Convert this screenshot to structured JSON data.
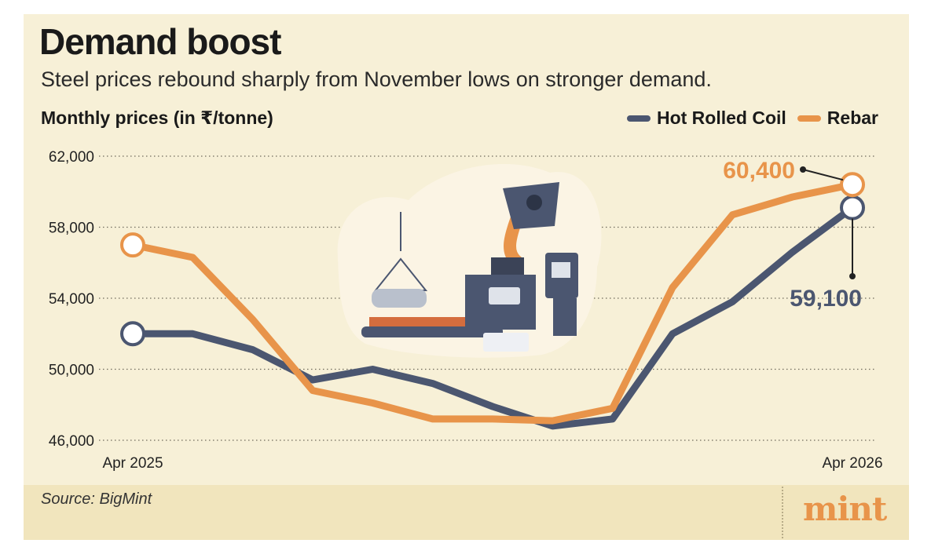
{
  "header": {
    "title": "Demand boost",
    "subtitle": "Steel prices rebound sharply from November lows on stronger demand.",
    "units": "Monthly prices (in ₹/tonne)"
  },
  "legend": [
    {
      "label": "Hot Rolled Coil",
      "color": "#4b5670"
    },
    {
      "label": "Rebar",
      "color": "#e8944a"
    }
  ],
  "chart_data": {
    "type": "line",
    "ylabel": "Monthly prices (in ₹/tonne)",
    "ylim": [
      46000,
      62000
    ],
    "yticks": [
      46000,
      50000,
      54000,
      58000,
      62000
    ],
    "ytick_labels": [
      "46,000",
      "50,000",
      "54,000",
      "58,000",
      "62,000"
    ],
    "x_labels": [
      {
        "index": 0,
        "label": "Apr 2025"
      },
      {
        "index": 12,
        "label": "Apr 2026"
      }
    ],
    "grid": "horizontal dotted",
    "legend_position": "top-right",
    "series": [
      {
        "name": "Hot Rolled Coil",
        "color": "#4b5670",
        "values": [
          52000,
          52000,
          51100,
          49400,
          50000,
          49200,
          47900,
          46800,
          47200,
          52000,
          53800,
          56600,
          59100
        ]
      },
      {
        "name": "Rebar",
        "color": "#e8944a",
        "values": [
          57000,
          56300,
          52800,
          48800,
          48100,
          47200,
          47200,
          47100,
          47800,
          54600,
          58700,
          59700,
          60400
        ]
      }
    ],
    "annotations": [
      {
        "series": "Rebar",
        "index": 12,
        "label": "60,400"
      },
      {
        "series": "Hot Rolled Coil",
        "index": 12,
        "label": "59,100"
      }
    ]
  },
  "footer": {
    "source": "Source: BigMint",
    "logo": "mint"
  }
}
